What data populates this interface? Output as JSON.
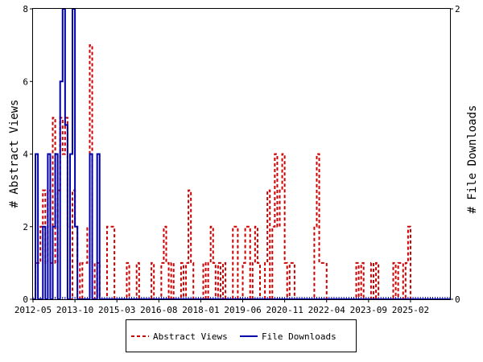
{
  "chart_data": {
    "type": "line",
    "ylabel": "# Abstract Views",
    "y2label": "# File Downloads",
    "ylim": [
      0,
      8
    ],
    "y2lim": [
      0,
      2
    ],
    "xlim": [
      "2012-05",
      "2026-06"
    ],
    "yticks": [
      "0",
      "2",
      "4",
      "6",
      "8"
    ],
    "y2ticks": [
      "0",
      "2"
    ],
    "xticks": [
      "2012-05",
      "2013-10",
      "2015-03",
      "2016-08",
      "2018-01",
      "2019-06",
      "2020-11",
      "2022-04",
      "2023-09",
      "2025-02"
    ],
    "legend_position": "bottom",
    "series": [
      {
        "name": "Abstract Views",
        "color": "#cc0000",
        "style": "dashed",
        "axis": "left",
        "points": [
          [
            "2012-05",
            0
          ],
          [
            "2012-06",
            1
          ],
          [
            "2012-07",
            1
          ],
          [
            "2012-08",
            2
          ],
          [
            "2012-09",
            3
          ],
          [
            "2012-10",
            1
          ],
          [
            "2012-11",
            3
          ],
          [
            "2012-12",
            1
          ],
          [
            "2013-01",
            5
          ],
          [
            "2013-02",
            1
          ],
          [
            "2013-03",
            3
          ],
          [
            "2013-04",
            5
          ],
          [
            "2013-05",
            4
          ],
          [
            "2013-06",
            5
          ],
          [
            "2013-07",
            2
          ],
          [
            "2013-08",
            0
          ],
          [
            "2013-09",
            3
          ],
          [
            "2013-10",
            2
          ],
          [
            "2013-11",
            1
          ],
          [
            "2013-12",
            0
          ],
          [
            "2014-01",
            1
          ],
          [
            "2014-02",
            1
          ],
          [
            "2014-03",
            2
          ],
          [
            "2014-04",
            7
          ],
          [
            "2014-05",
            1
          ],
          [
            "2014-06",
            0
          ],
          [
            "2014-07",
            1
          ],
          [
            "2014-08",
            0
          ],
          [
            "2014-09",
            0
          ],
          [
            "2014-10",
            0
          ],
          [
            "2014-11",
            2
          ],
          [
            "2014-12",
            2
          ],
          [
            "2015-01",
            2
          ],
          [
            "2015-02",
            0
          ],
          [
            "2015-03",
            0
          ],
          [
            "2015-04",
            0
          ],
          [
            "2015-05",
            0
          ],
          [
            "2015-06",
            0
          ],
          [
            "2015-07",
            1
          ],
          [
            "2015-08",
            0
          ],
          [
            "2015-09",
            0
          ],
          [
            "2015-10",
            0
          ],
          [
            "2015-11",
            1
          ],
          [
            "2015-12",
            0
          ],
          [
            "2016-01",
            0
          ],
          [
            "2016-02",
            0
          ],
          [
            "2016-03",
            0
          ],
          [
            "2016-04",
            0
          ],
          [
            "2016-05",
            1
          ],
          [
            "2016-06",
            0
          ],
          [
            "2016-07",
            0
          ],
          [
            "2016-08",
            0
          ],
          [
            "2016-09",
            1
          ],
          [
            "2016-10",
            2
          ],
          [
            "2016-11",
            1
          ],
          [
            "2016-12",
            0
          ],
          [
            "2017-01",
            1
          ],
          [
            "2017-02",
            0
          ],
          [
            "2017-03",
            0
          ],
          [
            "2017-04",
            0
          ],
          [
            "2017-05",
            1
          ],
          [
            "2017-06",
            0
          ],
          [
            "2017-07",
            1
          ],
          [
            "2017-08",
            3
          ],
          [
            "2017-09",
            1
          ],
          [
            "2017-10",
            0
          ],
          [
            "2017-11",
            0
          ],
          [
            "2017-12",
            0
          ],
          [
            "2018-01",
            0
          ],
          [
            "2018-02",
            1
          ],
          [
            "2018-03",
            0
          ],
          [
            "2018-04",
            1
          ],
          [
            "2018-05",
            2
          ],
          [
            "2018-06",
            1
          ],
          [
            "2018-07",
            0
          ],
          [
            "2018-08",
            1
          ],
          [
            "2018-09",
            0
          ],
          [
            "2018-10",
            1
          ],
          [
            "2018-11",
            0
          ],
          [
            "2018-12",
            0
          ],
          [
            "2019-01",
            0
          ],
          [
            "2019-02",
            2
          ],
          [
            "2019-03",
            2
          ],
          [
            "2019-04",
            0
          ],
          [
            "2019-05",
            0
          ],
          [
            "2019-06",
            1
          ],
          [
            "2019-07",
            2
          ],
          [
            "2019-08",
            2
          ],
          [
            "2019-09",
            0
          ],
          [
            "2019-10",
            1
          ],
          [
            "2019-11",
            2
          ],
          [
            "2019-12",
            1
          ],
          [
            "2020-01",
            0
          ],
          [
            "2020-02",
            0
          ],
          [
            "2020-03",
            1
          ],
          [
            "2020-04",
            3
          ],
          [
            "2020-05",
            0
          ],
          [
            "2020-06",
            2
          ],
          [
            "2020-07",
            4
          ],
          [
            "2020-08",
            2
          ],
          [
            "2020-09",
            3
          ],
          [
            "2020-10",
            4
          ],
          [
            "2020-11",
            1
          ],
          [
            "2020-12",
            0
          ],
          [
            "2021-01",
            1
          ],
          [
            "2021-02",
            1
          ],
          [
            "2021-03",
            0
          ],
          [
            "2021-04",
            0
          ],
          [
            "2021-05",
            0
          ],
          [
            "2021-06",
            0
          ],
          [
            "2021-07",
            0
          ],
          [
            "2021-08",
            0
          ],
          [
            "2021-09",
            0
          ],
          [
            "2021-10",
            0
          ],
          [
            "2021-11",
            2
          ],
          [
            "2021-12",
            4
          ],
          [
            "2022-01",
            1
          ],
          [
            "2022-02",
            1
          ],
          [
            "2022-03",
            1
          ],
          [
            "2022-04",
            0
          ],
          [
            "2022-05",
            0
          ],
          [
            "2022-06",
            0
          ],
          [
            "2022-07",
            0
          ],
          [
            "2022-08",
            0
          ],
          [
            "2022-09",
            0
          ],
          [
            "2022-10",
            0
          ],
          [
            "2022-11",
            0
          ],
          [
            "2022-12",
            0
          ],
          [
            "2023-01",
            0
          ],
          [
            "2023-02",
            0
          ],
          [
            "2023-03",
            0
          ],
          [
            "2023-04",
            1
          ],
          [
            "2023-05",
            0
          ],
          [
            "2023-06",
            1
          ],
          [
            "2023-07",
            0
          ],
          [
            "2023-08",
            0
          ],
          [
            "2023-09",
            0
          ],
          [
            "2023-10",
            1
          ],
          [
            "2023-11",
            0
          ],
          [
            "2023-12",
            1
          ],
          [
            "2024-01",
            0
          ],
          [
            "2024-02",
            0
          ],
          [
            "2024-03",
            0
          ],
          [
            "2024-04",
            0
          ],
          [
            "2024-05",
            0
          ],
          [
            "2024-06",
            0
          ],
          [
            "2024-07",
            1
          ],
          [
            "2024-08",
            0
          ],
          [
            "2024-09",
            1
          ],
          [
            "2024-10",
            1
          ],
          [
            "2024-11",
            0
          ],
          [
            "2024-12",
            1
          ],
          [
            "2025-01",
            2
          ],
          [
            "2025-02",
            0
          ],
          [
            "2025-03",
            0
          ],
          [
            "2025-04",
            0
          ],
          [
            "2025-05",
            0
          ],
          [
            "2025-06",
            0
          ],
          [
            "2025-07",
            0
          ],
          [
            "2025-08",
            0
          ],
          [
            "2025-09",
            0
          ],
          [
            "2025-10",
            0
          ],
          [
            "2025-11",
            0
          ],
          [
            "2025-12",
            0
          ],
          [
            "2026-01",
            0
          ],
          [
            "2026-02",
            0
          ],
          [
            "2026-03",
            0
          ],
          [
            "2026-04",
            0
          ],
          [
            "2026-05",
            0
          ],
          [
            "2026-06",
            0
          ]
        ]
      },
      {
        "name": "File Downloads",
        "color": "#0000aa",
        "style": "solid",
        "axis": "right",
        "points": [
          [
            "2012-05",
            0
          ],
          [
            "2012-06",
            1
          ],
          [
            "2012-07",
            0
          ],
          [
            "2012-08",
            0
          ],
          [
            "2012-09",
            0.5
          ],
          [
            "2012-10",
            0
          ],
          [
            "2012-11",
            1
          ],
          [
            "2012-12",
            0
          ],
          [
            "2013-01",
            0.5
          ],
          [
            "2013-02",
            1
          ],
          [
            "2013-03",
            0
          ],
          [
            "2013-04",
            1.5
          ],
          [
            "2013-05",
            2
          ],
          [
            "2013-06",
            1.2
          ],
          [
            "2013-07",
            0
          ],
          [
            "2013-08",
            1
          ],
          [
            "2013-09",
            2
          ],
          [
            "2013-10",
            0.5
          ],
          [
            "2013-11",
            0
          ],
          [
            "2013-12",
            0
          ],
          [
            "2014-01",
            0
          ],
          [
            "2014-02",
            0
          ],
          [
            "2014-03",
            0
          ],
          [
            "2014-04",
            1
          ],
          [
            "2014-05",
            0
          ],
          [
            "2014-06",
            0
          ],
          [
            "2014-07",
            1
          ],
          [
            "2014-08",
            0
          ],
          [
            "2014-09",
            0
          ],
          [
            "2014-10",
            0
          ],
          [
            "2026-06",
            0
          ]
        ]
      }
    ]
  }
}
